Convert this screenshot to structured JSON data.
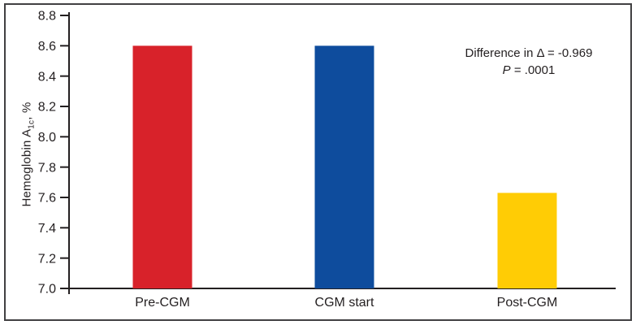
{
  "figure": {
    "background": "#ffffff",
    "border_color": "#414042"
  },
  "chart_data": {
    "type": "bar",
    "title": "",
    "ylabel_main": "Hemoglobin A",
    "ylabel_sub": "1c",
    "ylabel_suffix": ", %",
    "categories": [
      "Pre-CGM",
      "CGM start",
      "Post-CGM"
    ],
    "values": [
      8.6,
      8.6,
      7.63
    ],
    "bar_colors": [
      "#d8222a",
      "#0e4c9d",
      "#ffcc05"
    ],
    "ylim": [
      7.0,
      8.8
    ],
    "yticks": [
      "7.0",
      "7.2",
      "7.4",
      "7.6",
      "7.8",
      "8.0",
      "8.2",
      "8.4",
      "8.6",
      "8.8"
    ],
    "grid": false,
    "legend": "none",
    "axis_color": "#231f20",
    "text_color": "#231f20"
  },
  "annotation": {
    "line1": "Difference in Δ = -0.969",
    "p_label": "P",
    "p_rest": " = .0001"
  }
}
